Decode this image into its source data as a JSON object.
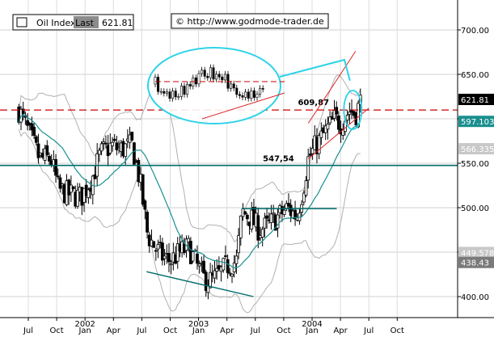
{
  "header": {
    "instrument": "Oil Index",
    "field": "Last",
    "last_value": "621.81",
    "source_text": "© http://www.godmode-trader.de"
  },
  "chart_data": {
    "type": "candlestick",
    "title": "Oil Index",
    "ylim": [
      395,
      730
    ],
    "yticks": [
      400,
      450,
      500,
      550,
      600,
      650,
      700
    ],
    "yticklabels": [
      "400.00",
      "450.00",
      "500.00",
      "550.00",
      "600.00",
      "650.00",
      "700.00"
    ],
    "xticklabels": [
      {
        "label": "Jul",
        "t": 0
      },
      {
        "label": "Oct",
        "t": 3
      },
      {
        "label": "Jan",
        "t": 6
      },
      {
        "label": "Apr",
        "t": 9
      },
      {
        "label": "Jul",
        "t": 12
      },
      {
        "label": "Oct",
        "t": 15
      },
      {
        "label": "Jan",
        "t": 18
      },
      {
        "label": "Apr",
        "t": 21
      },
      {
        "label": "Jul",
        "t": 24
      },
      {
        "label": "Oct",
        "t": 27
      },
      {
        "label": "Jan",
        "t": 30
      },
      {
        "label": "Apr",
        "t": 33
      },
      {
        "label": "Jul",
        "t": 36
      },
      {
        "label": "Oct",
        "t": 39
      }
    ],
    "years": [
      {
        "label": "2002",
        "t": 6
      },
      {
        "label": "2003",
        "t": 18
      },
      {
        "label": "2004",
        "t": 30
      }
    ],
    "trend_points": [
      [
        -1.0,
        610
      ],
      [
        0.0,
        585
      ],
      [
        1.2,
        555
      ],
      [
        2.4,
        555
      ],
      [
        3.2,
        520
      ],
      [
        4.4,
        515
      ],
      [
        5.6,
        512
      ],
      [
        6.8,
        535
      ],
      [
        7.6,
        560
      ],
      [
        8.8,
        570
      ],
      [
        9.6,
        565
      ],
      [
        11.0,
        570
      ],
      [
        11.8,
        530
      ],
      [
        12.6,
        470
      ],
      [
        13.4,
        455
      ],
      [
        14.2,
        445
      ],
      [
        15.0,
        440
      ],
      [
        16.0,
        450
      ],
      [
        17.0,
        455
      ],
      [
        17.8,
        435
      ],
      [
        18.6,
        420
      ],
      [
        19.4,
        418
      ],
      [
        20.2,
        425
      ],
      [
        21.0,
        435
      ],
      [
        22.0,
        440
      ],
      [
        22.6,
        495
      ],
      [
        23.4,
        490
      ],
      [
        24.4,
        475
      ],
      [
        25.4,
        480
      ],
      [
        26.4,
        490
      ],
      [
        27.4,
        500
      ],
      [
        28.4,
        490
      ],
      [
        29.0,
        520
      ],
      [
        29.6,
        555
      ],
      [
        30.4,
        570
      ],
      [
        31.4,
        585
      ],
      [
        32.4,
        600
      ],
      [
        33.0,
        595
      ],
      [
        34.0,
        610
      ],
      [
        34.6,
        605
      ],
      [
        35.2,
        621.81
      ]
    ],
    "levels": [
      {
        "label": "609,87",
        "value": 609.87
      },
      {
        "label": "547,54",
        "value": 547.54
      }
    ],
    "side_labels": [
      {
        "text": "621.81",
        "value": 621.81,
        "bg": "#000000",
        "fg": "#ffffff"
      },
      {
        "text": "597.103",
        "value": 597.103,
        "bg": "#1a8f8f",
        "fg": "#ffffff"
      },
      {
        "text": "566.335",
        "value": 566.335,
        "bg": "#c8c8c8",
        "fg": "#ffffff"
      },
      {
        "text": "449.578",
        "value": 449.578,
        "bg": "#c8c8c8",
        "fg": "#ffffff"
      },
      {
        "text": "438.43",
        "value": 438.43,
        "bg": "#7a7a7a",
        "fg": "#ffffff"
      }
    ],
    "colors": {
      "candle": "#000000",
      "moving_average": "#1a9090",
      "bands": "#b0b0b0",
      "level_red": "#cc0000",
      "support_teal": "#006b6b",
      "highlight": "#2ed3e8",
      "trendline_red": "#dd2222"
    }
  }
}
